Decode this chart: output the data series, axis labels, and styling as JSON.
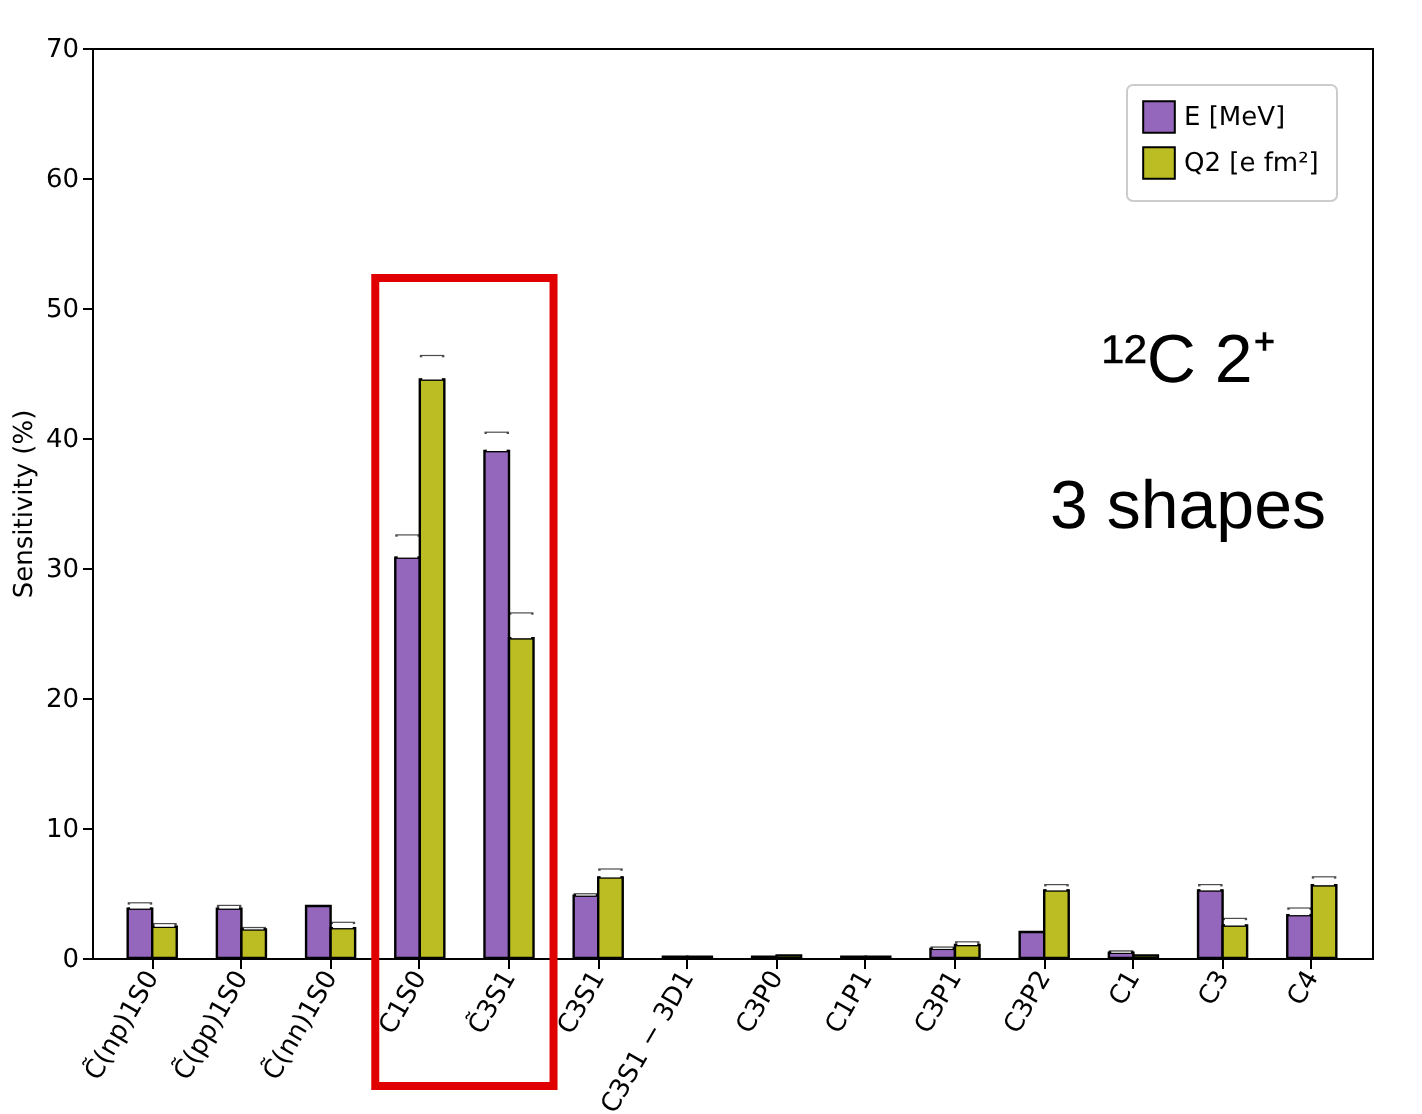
{
  "chart_data": {
    "type": "bar",
    "ylabel": "Sensitivity (%)",
    "categories": [
      "C̃(np)1S0",
      "C̃(pp)1S0",
      "C̃(nn)1S0",
      "C1S0",
      "C̃3S1",
      "C3S1",
      "C3S1 − 3D1",
      "C3P0",
      "C1P1",
      "C3P1",
      "C3P2",
      "C1",
      "C3",
      "C4"
    ],
    "series": [
      {
        "name": "E [MeV]",
        "color": "#9467bd",
        "values": [
          3.8,
          3.8,
          4.0,
          30.8,
          39.0,
          4.8,
          0.1,
          0.1,
          0.1,
          0.7,
          2.0,
          0.4,
          5.2,
          3.3
        ],
        "errors": [
          [
            3.8,
            4.2
          ],
          [
            3.8,
            4.0
          ],
          null,
          [
            30.8,
            32.5
          ],
          [
            39.0,
            40.4
          ],
          [
            4.8,
            4.9
          ],
          null,
          null,
          null,
          [
            0.7,
            0.8
          ],
          null,
          [
            0.4,
            0.5
          ],
          [
            5.2,
            5.6
          ],
          [
            3.3,
            3.8
          ]
        ]
      },
      {
        "name": "Q2 [e fm²]",
        "color": "#bcbd22",
        "values": [
          2.4,
          2.2,
          2.3,
          44.5,
          24.6,
          6.2,
          0.1,
          0.2,
          0.1,
          1.0,
          5.2,
          0.2,
          2.5,
          5.6
        ],
        "errors": [
          [
            2.4,
            2.6
          ],
          [
            2.2,
            2.3
          ],
          [
            2.3,
            2.7
          ],
          [
            44.5,
            46.3
          ],
          [
            24.6,
            26.5
          ],
          [
            6.2,
            6.8
          ],
          null,
          null,
          null,
          [
            1.0,
            1.2
          ],
          [
            5.2,
            5.6
          ],
          null,
          [
            2.5,
            3.0
          ],
          [
            5.6,
            6.2
          ]
        ]
      }
    ],
    "ylim": [
      0,
      70
    ],
    "yticks": [
      0,
      10,
      20,
      30,
      40,
      50,
      60,
      70
    ],
    "legend": "top right",
    "grid": false,
    "annotations": [
      "¹²C 2⁺",
      "3 shapes"
    ]
  }
}
